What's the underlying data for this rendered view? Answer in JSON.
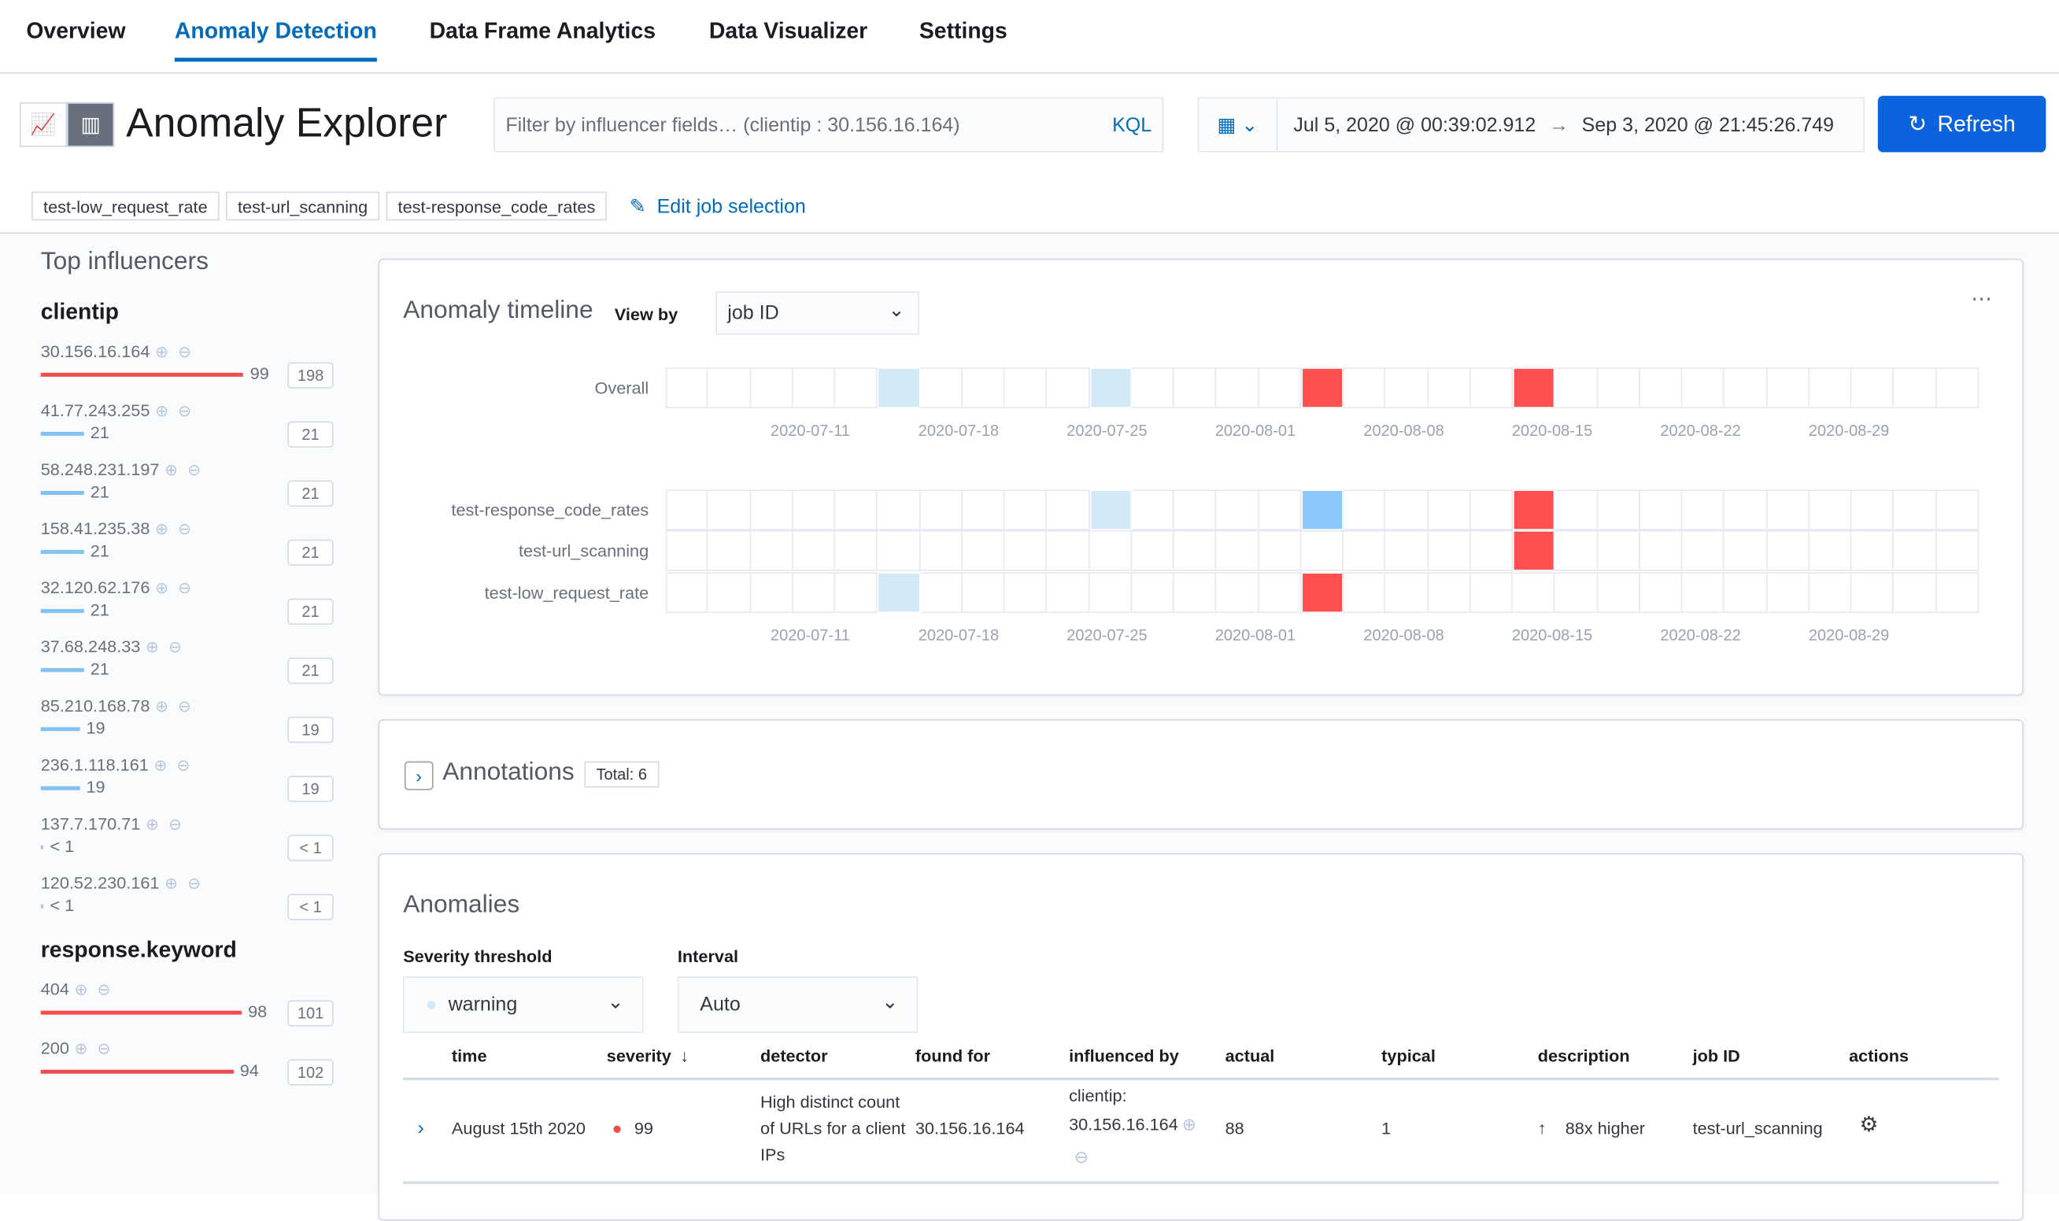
{
  "nav": {
    "tabs": [
      "Overview",
      "Anomaly Detection",
      "Data Frame Analytics",
      "Data Visualizer",
      "Settings"
    ],
    "active": "Anomaly Detection"
  },
  "header": {
    "title": "Anomaly Explorer",
    "filter_placeholder": "Filter by influencer fields… (clientip : 30.156.16.164)",
    "kql": "KQL",
    "date_start": "Jul 5, 2020 @ 00:39:02.912",
    "date_end": "Sep 3, 2020 @ 21:45:26.749",
    "refresh": "Refresh"
  },
  "jobs": [
    "test-low_request_rate",
    "test-url_scanning",
    "test-response_code_rates"
  ],
  "edit_jobs": "Edit job selection",
  "influencers": {
    "title": "Top influencers",
    "groups": [
      {
        "field": "clientip",
        "items": [
          {
            "name": "30.156.16.164",
            "score": "99",
            "count": "198",
            "color": "#f04e4e",
            "fill": 0.99
          },
          {
            "name": "41.77.243.255",
            "score": "21",
            "count": "21",
            "color": "#83c1f0",
            "fill": 0.21
          },
          {
            "name": "58.248.231.197",
            "score": "21",
            "count": "21",
            "color": "#83c1f0",
            "fill": 0.21
          },
          {
            "name": "158.41.235.38",
            "score": "21",
            "count": "21",
            "color": "#83c1f0",
            "fill": 0.21
          },
          {
            "name": "32.120.62.176",
            "score": "21",
            "count": "21",
            "color": "#83c1f0",
            "fill": 0.21
          },
          {
            "name": "37.68.248.33",
            "score": "21",
            "count": "21",
            "color": "#83c1f0",
            "fill": 0.21
          },
          {
            "name": "85.210.168.78",
            "score": "19",
            "count": "19",
            "color": "#83c1f0",
            "fill": 0.19
          },
          {
            "name": "236.1.118.161",
            "score": "19",
            "count": "19",
            "color": "#83c1f0",
            "fill": 0.19
          },
          {
            "name": "137.7.170.71",
            "score": "< 1",
            "count": "< 1",
            "color": "#b4c4dd",
            "fill": 0.01
          },
          {
            "name": "120.52.230.161",
            "score": "< 1",
            "count": "< 1",
            "color": "#b4c4dd",
            "fill": 0.01
          }
        ]
      },
      {
        "field": "response.keyword",
        "items": [
          {
            "name": "404",
            "score": "98",
            "count": "101",
            "color": "#f04e4e",
            "fill": 0.98
          },
          {
            "name": "200",
            "score": "94",
            "count": "102",
            "color": "#f04e4e",
            "fill": 0.94
          }
        ]
      }
    ]
  },
  "timeline": {
    "title": "Anomaly timeline",
    "view_by_label": "View by",
    "view_by": "job ID",
    "columns": 31,
    "ticks": [
      "2020-07-11",
      "2020-07-18",
      "2020-07-25",
      "2020-08-01",
      "2020-08-08",
      "2020-08-15",
      "2020-08-22",
      "2020-08-29"
    ],
    "overall": {
      "label": "Overall",
      "cells": [
        {
          "col": 5,
          "color": "#d2e9f7"
        },
        {
          "col": 10,
          "color": "#d2e9f7"
        },
        {
          "col": 15,
          "color": "#fe5050"
        },
        {
          "col": 20,
          "color": "#fe5050"
        }
      ]
    },
    "swimlanes": [
      {
        "label": "test-response_code_rates",
        "cells": [
          {
            "col": 10,
            "color": "#d2e9f7"
          },
          {
            "col": 15,
            "color": "#8bc8fb"
          },
          {
            "col": 20,
            "color": "#fe5050"
          }
        ]
      },
      {
        "label": "test-url_scanning",
        "cells": [
          {
            "col": 20,
            "color": "#fe5050"
          }
        ]
      },
      {
        "label": "test-low_request_rate",
        "cells": [
          {
            "col": 5,
            "color": "#d2e9f7"
          },
          {
            "col": 15,
            "color": "#fe5050"
          }
        ]
      }
    ]
  },
  "annotations": {
    "title": "Annotations",
    "total": "Total: 6"
  },
  "anomalies": {
    "title": "Anomalies",
    "severity_label": "Severity threshold",
    "severity": "warning",
    "interval_label": "Interval",
    "interval": "Auto",
    "columns": [
      "time",
      "severity",
      "detector",
      "found for",
      "influenced by",
      "actual",
      "typical",
      "description",
      "job ID",
      "actions"
    ],
    "rows": [
      {
        "time": "August 15th 2020",
        "severity": "99",
        "detector": "High distinct count of URLs for a client IPs",
        "found_for": "30.156.16.164",
        "influenced_field": "clientip:",
        "influenced_value": "30.156.16.164",
        "actual": "88",
        "typical": "1",
        "description": "88x higher",
        "job_id": "test-url_scanning"
      }
    ]
  }
}
